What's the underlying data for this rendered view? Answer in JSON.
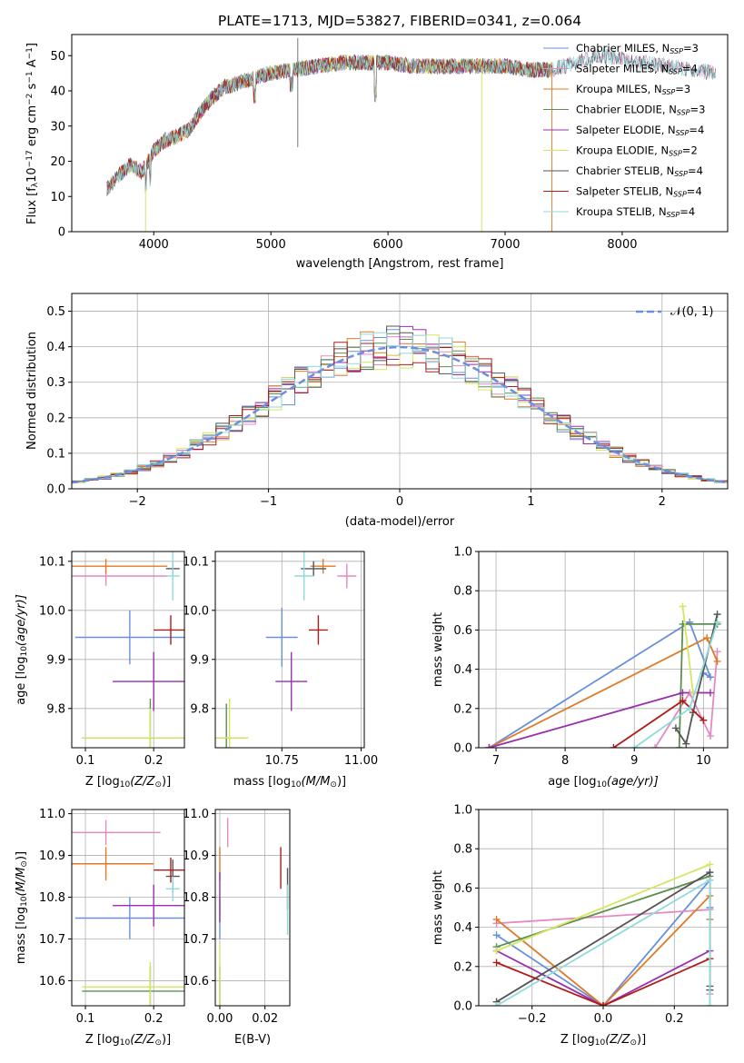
{
  "figure_title": "PLATE=1713, MJD=53827, FIBERID=0341, z=0.064",
  "colors": {
    "Chabrier MILES": "#6a8fdc",
    "Salpeter MILES": "#e589c1",
    "Kroupa MILES": "#e07a27",
    "Chabrier ELODIE": "#5e8f4e",
    "Salpeter ELODIE": "#9a2fae",
    "Kroupa ELODIE": "#d4e660",
    "Chabrier STELIB": "#555555",
    "Salpeter STELIB": "#b01c1c",
    "Kroupa STELIB": "#8fdada"
  },
  "chart_data": [
    {
      "id": "spectrum",
      "type": "line",
      "title": "PLATE=1713, MJD=53827, FIBERID=0341, z=0.064",
      "xlabel": "wavelength [Angstrom, rest frame]",
      "ylabel_main": "Flux [f",
      "ylabel_sub": "λ",
      "ylabel_rest": "10",
      "ylabel_exp": "−17",
      "ylabel_tail": " erg cm",
      "ylabel_exp2": "−2",
      "ylabel_tail2": " s",
      "ylabel_exp3": "−1",
      "ylabel_tail3": " A",
      "ylabel_exp4": "−1",
      "ylabel_end": "]",
      "xlim": [
        3300,
        8900
      ],
      "ylim": [
        0,
        56
      ],
      "xticks": [
        4000,
        5000,
        6000,
        7000,
        8000
      ],
      "yticks": [
        0,
        10,
        20,
        30,
        40,
        50
      ],
      "legend_position": "top-right",
      "legend": [
        {
          "name": "Chabrier MILES",
          "nssp": "3"
        },
        {
          "name": "Salpeter MILES",
          "nssp": "4"
        },
        {
          "name": "Kroupa MILES",
          "nssp": "3"
        },
        {
          "name": "Chabrier ELODIE",
          "nssp": "3"
        },
        {
          "name": "Salpeter ELODIE",
          "nssp": "4"
        },
        {
          "name": "Kroupa ELODIE",
          "nssp": "2"
        },
        {
          "name": "Chabrier STELIB",
          "nssp": "4"
        },
        {
          "name": "Salpeter STELIB",
          "nssp": "4"
        },
        {
          "name": "Kroupa STELIB",
          "nssp": "4"
        }
      ],
      "legend_nsub": "N",
      "legend_sub": "SSP",
      "continuum_x": [
        3600,
        3700,
        3800,
        3900,
        4000,
        4100,
        4200,
        4300,
        4400,
        4500,
        4600,
        4700,
        4800,
        4900,
        5000,
        5200,
        5400,
        5600,
        5800,
        6000,
        6200,
        6400,
        6600,
        6800,
        7000,
        7200,
        7400,
        7600,
        7800,
        8000,
        8200,
        8400,
        8600,
        8800
      ],
      "continuum_y": [
        12,
        16,
        19,
        17,
        23,
        26,
        27,
        29,
        34,
        38,
        41,
        42,
        43,
        44,
        45,
        46,
        47,
        48,
        48,
        48,
        47,
        47,
        47,
        47,
        47,
        46,
        46,
        48,
        50,
        49,
        48,
        47,
        46,
        45
      ]
    },
    {
      "id": "residual_hist",
      "type": "step",
      "xlabel": "(data-model)/error",
      "ylabel": "Normed distribution",
      "xlim": [
        -2.5,
        2.5
      ],
      "ylim": [
        0,
        0.55
      ],
      "xticks": [
        -2,
        -1,
        0,
        1,
        2
      ],
      "xtick_labels": [
        "−2",
        "−1",
        "0",
        "1",
        "2"
      ],
      "yticks": [
        0.0,
        0.1,
        0.2,
        0.3,
        0.4,
        0.5
      ],
      "ytick_labels": [
        "0.0",
        "0.1",
        "0.2",
        "0.3",
        "0.4",
        "0.5"
      ],
      "gaussian_label": "𝒩(0, 1)",
      "gaussian_color": "#6a8fdc",
      "bin_width": 0.1
    },
    {
      "id": "age_vs_Z",
      "type": "errorbar",
      "xlabel": "Z [log",
      "xlabel_sub": "10",
      "xlabel_tail": "(Z/Z",
      "xlabel_sun": "⊙",
      "xlabel_end": ")]",
      "ylabel": "age  [log",
      "ylabel_sub": "10",
      "ylabel_tail": "(age/yr)]",
      "xlim": [
        0.08,
        0.245
      ],
      "ylim": [
        9.72,
        10.12
      ],
      "xticks": [
        0.1,
        0.2
      ],
      "xtick_labels": [
        "0.1",
        "0.2"
      ],
      "yticks": [
        9.8,
        9.9,
        10.0,
        10.1
      ],
      "ytick_labels": [
        "9.8",
        "9.9",
        "10.0",
        "10.1"
      ],
      "points": [
        {
          "series": "Chabrier MILES",
          "x": 0.165,
          "y": 9.945,
          "xerr": 0.08,
          "yerr": 0.055
        },
        {
          "series": "Salpeter MILES",
          "x": 0.13,
          "y": 10.07,
          "xerr": 0.09,
          "yerr": 0.02
        },
        {
          "series": "Kroupa MILES",
          "x": 0.13,
          "y": 10.09,
          "xerr": 0.09,
          "yerr": 0.015
        },
        {
          "series": "Chabrier ELODIE",
          "x": 0.195,
          "y": 9.74,
          "xerr": 0.1,
          "yerr": 0.08
        },
        {
          "series": "Salpeter ELODIE",
          "x": 0.2,
          "y": 9.855,
          "xerr": 0.06,
          "yerr": 0.06
        },
        {
          "series": "Kroupa ELODIE",
          "x": 0.195,
          "y": 9.74,
          "xerr": 0.1,
          "yerr": 0.06
        },
        {
          "series": "Chabrier STELIB",
          "x": 0.228,
          "y": 10.085,
          "xerr": 0.01,
          "yerr": 0.015
        },
        {
          "series": "Salpeter STELIB",
          "x": 0.225,
          "y": 9.96,
          "xerr": 0.025,
          "yerr": 0.03
        },
        {
          "series": "Kroupa STELIB",
          "x": 0.228,
          "y": 10.07,
          "xerr": 0.01,
          "yerr": 0.05
        }
      ]
    },
    {
      "id": "age_vs_mass",
      "type": "errorbar",
      "xlabel": "mass [log",
      "xlabel_sub": "10",
      "xlabel_tail": "(M/M",
      "xlabel_sun": "⊙",
      "xlabel_end": ")]",
      "xlim": [
        10.54,
        11.01
      ],
      "ylim": [
        9.72,
        10.12
      ],
      "xticks": [
        10.75,
        11.0
      ],
      "xtick_labels": [
        "10.75",
        "11.00"
      ],
      "yticks": [
        9.8,
        9.9,
        10.0,
        10.1
      ],
      "ytick_labels": [
        "9.8",
        "9.9",
        "10.0",
        "10.1"
      ],
      "points": [
        {
          "series": "Chabrier MILES",
          "x": 10.75,
          "y": 9.945,
          "xerr": 0.05,
          "yerr": 0.06
        },
        {
          "series": "Salpeter MILES",
          "x": 10.955,
          "y": 10.07,
          "xerr": 0.03,
          "yerr": 0.025
        },
        {
          "series": "Kroupa MILES",
          "x": 10.88,
          "y": 10.09,
          "xerr": 0.04,
          "yerr": 0.015
        },
        {
          "series": "Chabrier ELODIE",
          "x": 10.575,
          "y": 9.74,
          "xerr": 0.06,
          "yerr": 0.07
        },
        {
          "series": "Salpeter ELODIE",
          "x": 10.78,
          "y": 9.855,
          "xerr": 0.05,
          "yerr": 0.06
        },
        {
          "series": "Kroupa ELODIE",
          "x": 10.585,
          "y": 9.74,
          "xerr": 0.06,
          "yerr": 0.08
        },
        {
          "series": "Chabrier STELIB",
          "x": 10.85,
          "y": 10.085,
          "xerr": 0.04,
          "yerr": 0.015
        },
        {
          "series": "Salpeter STELIB",
          "x": 10.865,
          "y": 9.96,
          "xerr": 0.03,
          "yerr": 0.03
        },
        {
          "series": "Kroupa STELIB",
          "x": 10.82,
          "y": 10.07,
          "xerr": 0.03,
          "yerr": 0.05
        }
      ]
    },
    {
      "id": "weight_vs_age",
      "type": "line",
      "xlabel": "age  [log",
      "xlabel_sub": "10",
      "xlabel_tail": "(age/yr)]",
      "ylabel": "mass weight",
      "xlim": [
        6.75,
        10.35
      ],
      "ylim": [
        0,
        1
      ],
      "xticks": [
        7,
        8,
        9,
        10
      ],
      "xtick_labels": [
        "7",
        "8",
        "9",
        "10"
      ],
      "yticks": [
        0.0,
        0.2,
        0.4,
        0.6,
        0.8,
        1.0
      ],
      "ytick_labels": [
        "0.0",
        "0.2",
        "0.4",
        "0.6",
        "0.8",
        "1.0"
      ],
      "series": [
        {
          "name": "Chabrier MILES",
          "x": [
            6.9,
            9.8,
            10.1,
            10.0
          ],
          "y": [
            0.0,
            0.64,
            0.36,
            0.38
          ]
        },
        {
          "name": "Salpeter MILES",
          "x": [
            9.3,
            9.8,
            10.1,
            10.2
          ],
          "y": [
            0.0,
            0.28,
            0.06,
            0.49
          ]
        },
        {
          "name": "Kroupa MILES",
          "x": [
            6.9,
            10.05,
            10.2
          ],
          "y": [
            0.0,
            0.56,
            0.44
          ]
        },
        {
          "name": "Chabrier ELODIE",
          "x": [
            9.65,
            9.7,
            10.2
          ],
          "y": [
            0.0,
            0.63,
            0.63
          ]
        },
        {
          "name": "Salpeter ELODIE",
          "x": [
            6.9,
            9.7,
            10.1
          ],
          "y": [
            0.0,
            0.28,
            0.28
          ]
        },
        {
          "name": "Kroupa ELODIE",
          "x": [
            9.7,
            9.85
          ],
          "y": [
            0.72,
            0.28
          ]
        },
        {
          "name": "Chabrier STELIB",
          "x": [
            9.6,
            9.75,
            9.85,
            10.2
          ],
          "y": [
            0.1,
            0.02,
            0.18,
            0.68
          ]
        },
        {
          "name": "Salpeter STELIB",
          "x": [
            8.7,
            9.7,
            10.0
          ],
          "y": [
            0.0,
            0.24,
            0.14
          ]
        },
        {
          "name": "Kroupa STELIB",
          "x": [
            9.0,
            9.8,
            10.2
          ],
          "y": [
            0.0,
            0.2,
            0.64
          ]
        }
      ]
    },
    {
      "id": "mass_vs_Z",
      "type": "errorbar",
      "xlabel": "Z [log",
      "xlabel_sub": "10",
      "xlabel_tail": "(Z/Z",
      "xlabel_sun": "⊙",
      "xlabel_end": ")]",
      "ylabel": "mass [log",
      "ylabel_sub": "10",
      "ylabel_tail": "(M/M",
      "ylabel_sun": "⊙",
      "ylabel_end": ")]",
      "xlim": [
        0.08,
        0.245
      ],
      "ylim": [
        10.54,
        11.01
      ],
      "xticks": [
        0.1,
        0.2
      ],
      "xtick_labels": [
        "0.1",
        "0.2"
      ],
      "yticks": [
        10.6,
        10.7,
        10.8,
        10.9,
        11.0
      ],
      "ytick_labels": [
        "10.6",
        "10.7",
        "10.8",
        "10.9",
        "11.0"
      ],
      "points": [
        {
          "series": "Chabrier MILES",
          "x": 0.165,
          "y": 10.75,
          "xerr": 0.08,
          "yerr": 0.05
        },
        {
          "series": "Salpeter MILES",
          "x": 0.13,
          "y": 10.955,
          "xerr": 0.08,
          "yerr": 0.03
        },
        {
          "series": "Kroupa MILES",
          "x": 0.13,
          "y": 10.88,
          "xerr": 0.07,
          "yerr": 0.04
        },
        {
          "series": "Chabrier ELODIE",
          "x": 0.195,
          "y": 10.575,
          "xerr": 0.1,
          "yerr": 0.06
        },
        {
          "series": "Salpeter ELODIE",
          "x": 0.2,
          "y": 10.78,
          "xerr": 0.06,
          "yerr": 0.05
        },
        {
          "series": "Kroupa ELODIE",
          "x": 0.195,
          "y": 10.585,
          "xerr": 0.1,
          "yerr": 0.06
        },
        {
          "series": "Chabrier STELIB",
          "x": 0.228,
          "y": 10.85,
          "xerr": 0.01,
          "yerr": 0.04
        },
        {
          "series": "Salpeter STELIB",
          "x": 0.225,
          "y": 10.865,
          "xerr": 0.025,
          "yerr": 0.03
        },
        {
          "series": "Kroupa STELIB",
          "x": 0.228,
          "y": 10.82,
          "xerr": 0.01,
          "yerr": 0.03
        }
      ]
    },
    {
      "id": "mass_vs_ebv",
      "type": "errorbar",
      "xlabel": "E(B-V)",
      "xlim": [
        -0.002,
        0.031
      ],
      "ylim": [
        10.54,
        11.01
      ],
      "xticks": [
        0.0,
        0.02
      ],
      "xtick_labels": [
        "0.00",
        "0.02"
      ],
      "yticks": [
        10.6,
        10.7,
        10.8,
        10.9,
        11.0
      ],
      "ytick_labels": [
        "10.6",
        "10.7",
        "10.8",
        "10.9",
        "11.0"
      ],
      "points": [
        {
          "series": "Chabrier MILES",
          "x": 0.0,
          "y": 10.75,
          "xerr": 0.0,
          "yerr": 0.05
        },
        {
          "series": "Salpeter MILES",
          "x": 0.0035,
          "y": 10.955,
          "xerr": 0.0,
          "yerr": 0.035
        },
        {
          "series": "Kroupa MILES",
          "x": 0.0,
          "y": 10.88,
          "xerr": 0.0,
          "yerr": 0.04
        },
        {
          "series": "Chabrier ELODIE",
          "x": 0.0,
          "y": 10.575,
          "xerr": 0.0,
          "yerr": 0.06
        },
        {
          "series": "Salpeter ELODIE",
          "x": 0.0,
          "y": 10.8,
          "xerr": 0.0,
          "yerr": 0.06
        },
        {
          "series": "Kroupa ELODIE",
          "x": 0.0,
          "y": 10.61,
          "xerr": 0.0,
          "yerr": 0.08
        },
        {
          "series": "Chabrier STELIB",
          "x": 0.03,
          "y": 10.82,
          "xerr": 0.0,
          "yerr": 0.05
        },
        {
          "series": "Salpeter STELIB",
          "x": 0.027,
          "y": 10.87,
          "xerr": 0.0,
          "yerr": 0.05
        },
        {
          "series": "Kroupa STELIB",
          "x": 0.03,
          "y": 10.77,
          "xerr": 0.0,
          "yerr": 0.06
        }
      ]
    },
    {
      "id": "weight_vs_Z",
      "type": "line",
      "xlabel": "Z [log",
      "xlabel_sub": "10",
      "xlabel_tail": "(Z/Z",
      "xlabel_sun": "⊙",
      "xlabel_end": ")]",
      "ylabel": "mass weight",
      "xlim": [
        -0.35,
        0.35
      ],
      "ylim": [
        0,
        1
      ],
      "xticks": [
        -0.2,
        0.0,
        0.2
      ],
      "xtick_labels": [
        "−0.2",
        "0.0",
        "0.2"
      ],
      "yticks": [
        0.0,
        0.2,
        0.4,
        0.6,
        0.8,
        1.0
      ],
      "ytick_labels": [
        "0.0",
        "0.2",
        "0.4",
        "0.6",
        "0.8",
        "1.0"
      ],
      "series": [
        {
          "name": "Chabrier MILES",
          "x": [
            -0.3,
            0.0,
            0.3,
            0.3
          ],
          "y": [
            0.36,
            0.0,
            0.64,
            0.5
          ]
        },
        {
          "name": "Salpeter MILES",
          "x": [
            -0.3,
            0.3,
            0.3
          ],
          "y": [
            0.42,
            0.49,
            0.06
          ]
        },
        {
          "name": "Kroupa MILES",
          "x": [
            -0.3,
            0.0,
            0.3,
            0.3
          ],
          "y": [
            0.44,
            0.0,
            0.56,
            0.44
          ]
        },
        {
          "name": "Chabrier ELODIE",
          "x": [
            -0.3,
            0.3
          ],
          "y": [
            0.3,
            0.66
          ]
        },
        {
          "name": "Salpeter ELODIE",
          "x": [
            -0.3,
            0.0,
            0.3
          ],
          "y": [
            0.28,
            0.0,
            0.28
          ]
        },
        {
          "name": "Kroupa ELODIE",
          "x": [
            -0.3,
            0.3
          ],
          "y": [
            0.28,
            0.72
          ]
        },
        {
          "name": "Chabrier STELIB",
          "x": [
            -0.3,
            0.3,
            0.3,
            0.3
          ],
          "y": [
            0.02,
            0.68,
            0.1,
            0.08
          ]
        },
        {
          "name": "Salpeter STELIB",
          "x": [
            -0.3,
            0.0,
            0.3
          ],
          "y": [
            0.22,
            0.0,
            0.24
          ]
        },
        {
          "name": "Kroupa STELIB",
          "x": [
            -0.3,
            0.3,
            0.3
          ],
          "y": [
            0.0,
            0.64,
            0.0
          ]
        }
      ]
    }
  ]
}
